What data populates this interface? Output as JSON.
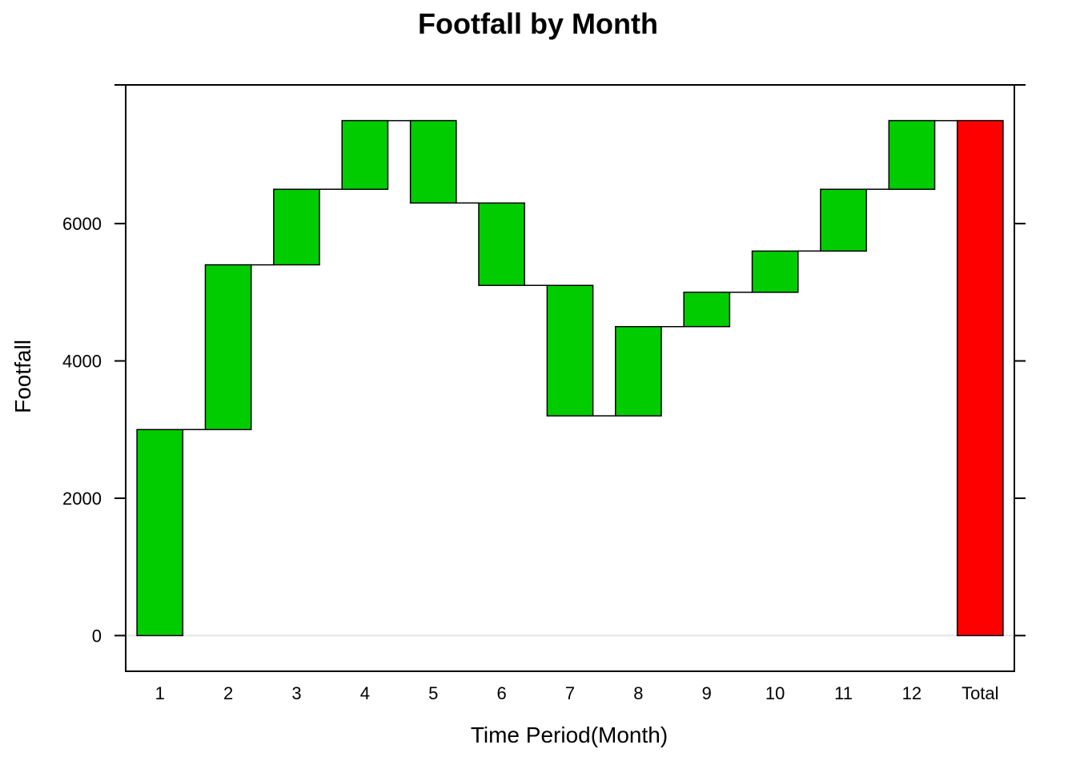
{
  "chart_data": {
    "type": "bar",
    "subtype": "waterfall",
    "title": "Footfall by Month",
    "xlabel": "Time Period(Month)",
    "ylabel": "Footfall",
    "categories": [
      "1",
      "2",
      "3",
      "4",
      "5",
      "6",
      "7",
      "8",
      "9",
      "10",
      "11",
      "12",
      "Total"
    ],
    "changes": [
      3000,
      2400,
      1100,
      1000,
      -1200,
      -1200,
      -1900,
      1300,
      500,
      600,
      900,
      1000
    ],
    "bars": [
      {
        "category": "1",
        "start": 0,
        "end": 3000
      },
      {
        "category": "2",
        "start": 3000,
        "end": 5400
      },
      {
        "category": "3",
        "start": 5400,
        "end": 6500
      },
      {
        "category": "4",
        "start": 6500,
        "end": 7500
      },
      {
        "category": "5",
        "start": 7500,
        "end": 6300
      },
      {
        "category": "6",
        "start": 6300,
        "end": 5100
      },
      {
        "category": "7",
        "start": 5100,
        "end": 3200
      },
      {
        "category": "8",
        "start": 3200,
        "end": 4500
      },
      {
        "category": "9",
        "start": 4500,
        "end": 5000
      },
      {
        "category": "10",
        "start": 5000,
        "end": 5600
      },
      {
        "category": "11",
        "start": 5600,
        "end": 6500
      },
      {
        "category": "12",
        "start": 6500,
        "end": 7500
      },
      {
        "category": "Total",
        "start": 0,
        "end": 7500
      }
    ],
    "ylim": [
      -520,
      8020
    ],
    "yticks": [
      0,
      2000,
      4000,
      6000
    ],
    "grid": false,
    "legend": "none",
    "colors": {
      "step": "#00cc00",
      "total": "#ff0000",
      "outline": "#000000",
      "zero_line": "#e5e5e5"
    }
  }
}
